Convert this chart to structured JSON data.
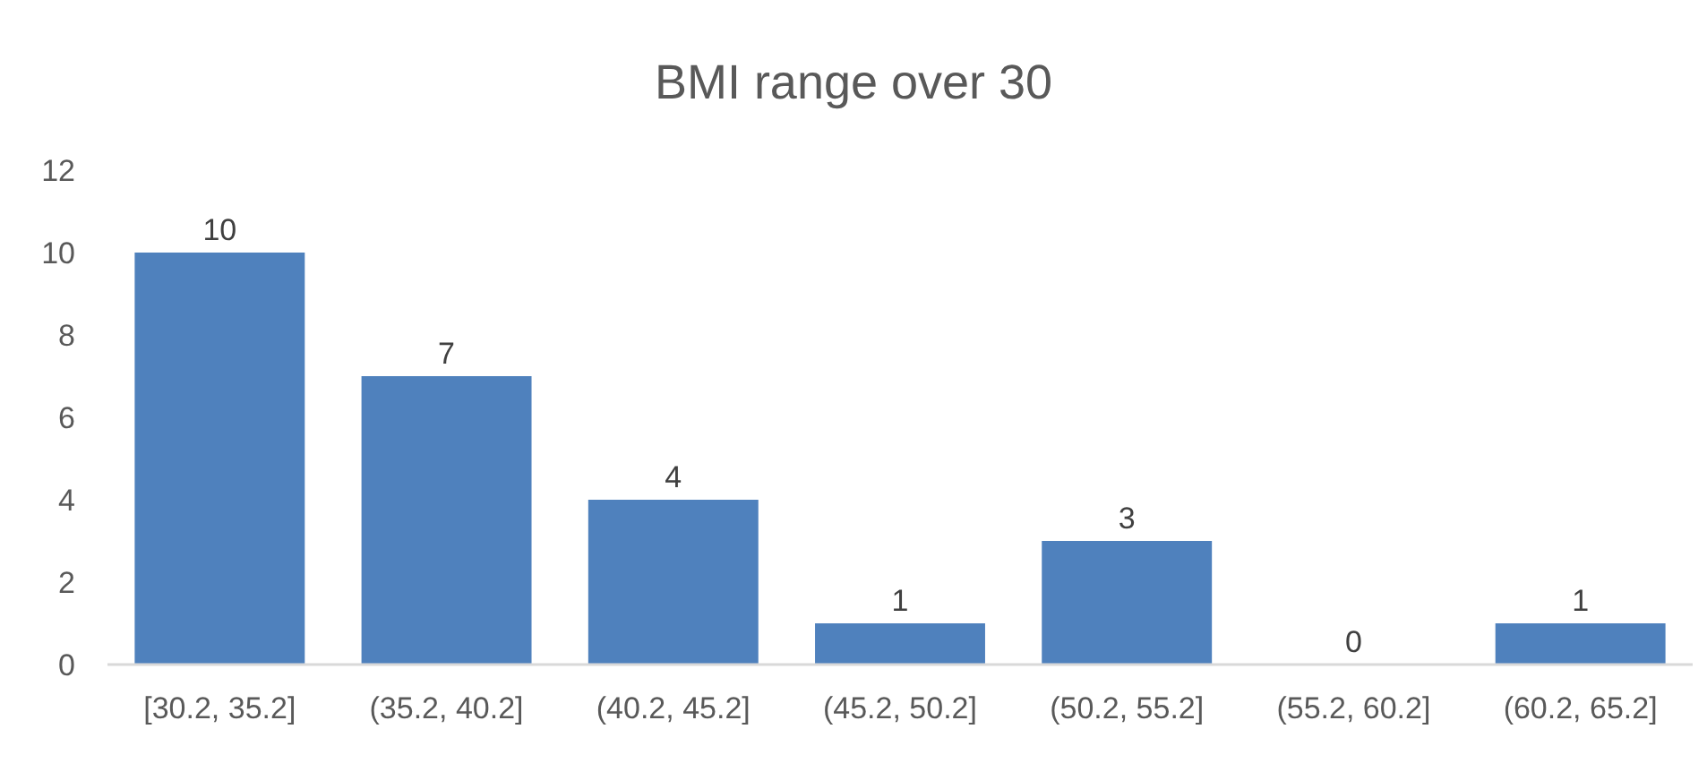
{
  "chart_data": {
    "type": "bar",
    "title": "BMI range over 30",
    "categories": [
      "[30.2, 35.2]",
      "(35.2, 40.2]",
      "(40.2, 45.2]",
      "(45.2, 50.2]",
      "(50.2, 55.2]",
      "(55.2, 60.2]",
      "(60.2, 65.2]"
    ],
    "values": [
      10,
      7,
      4,
      1,
      3,
      0,
      1
    ],
    "color": "#4f81bd",
    "ylim": [
      0,
      12
    ],
    "yticks": [
      0,
      2,
      4,
      6,
      8,
      10,
      12
    ],
    "grid": false,
    "data_labels": true
  }
}
